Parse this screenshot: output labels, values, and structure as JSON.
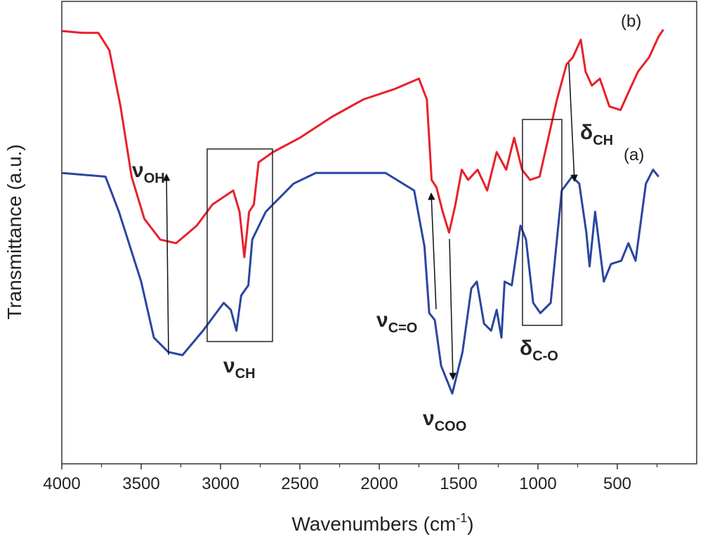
{
  "chart_data": {
    "type": "line",
    "ylabel": "Transmittance (a.u.)",
    "xlabel": [
      "Wavenumbers (cm",
      "-1",
      ")"
    ],
    "xlim": [
      4000,
      0
    ],
    "ylim": [
      0,
      100
    ],
    "xticks": [
      4000,
      3500,
      3000,
      2500,
      2000,
      1500,
      1000,
      500
    ],
    "xticks_minor": [
      3750,
      3250,
      2750,
      2250,
      1750,
      1250,
      750,
      250
    ],
    "annotations": [
      {
        "text": "(a)"
      },
      {
        "text": "(b)"
      },
      {
        "text": "ν",
        "sub": "OH"
      },
      {
        "text": "ν",
        "sub": "CH"
      },
      {
        "text": "ν",
        "sub": "C=O"
      },
      {
        "text": "ν",
        "sub": "COO"
      },
      {
        "text": "δ",
        "sub": "C-O"
      },
      {
        "text": "δ",
        "sub": "CH"
      }
    ],
    "series": [
      {
        "name": "(a)",
        "color": "#2b45a0",
        "x": [
          4000,
          3725,
          3640,
          3500,
          3420,
          3330,
          3240,
          3110,
          2980,
          2935,
          2900,
          2870,
          2825,
          2800,
          2715,
          2540,
          2400,
          1960,
          1780,
          1715,
          1685,
          1650,
          1610,
          1540,
          1475,
          1420,
          1385,
          1340,
          1295,
          1260,
          1230,
          1210,
          1165,
          1110,
          1075,
          1030,
          985,
          920,
          850,
          785,
          740,
          695,
          675,
          640,
          585,
          540,
          475,
          430,
          385,
          320,
          275,
          240
        ],
        "values": [
          62.9,
          62.1,
          54.5,
          39.4,
          27.3,
          24.2,
          23.5,
          28.8,
          34.8,
          33.3,
          28.8,
          36.4,
          38.6,
          48.5,
          54.5,
          60.6,
          62.9,
          62.9,
          59.1,
          47,
          32.6,
          31.1,
          21.2,
          15.2,
          24.2,
          37.9,
          39.4,
          30.3,
          28.8,
          33.3,
          27.3,
          39.4,
          38.6,
          51.5,
          48.5,
          34.8,
          32.6,
          34.8,
          59.1,
          62.1,
          60.6,
          50,
          42.7,
          54.5,
          39.4,
          43.2,
          43.9,
          47.7,
          43.9,
          60.6,
          63.6,
          62.1
        ]
      },
      {
        "name": "(b)",
        "color": "#e8202a",
        "x": [
          4000,
          3870,
          3770,
          3700,
          3630,
          3560,
          3480,
          3380,
          3280,
          3150,
          3050,
          2920,
          2880,
          2850,
          2820,
          2790,
          2760,
          2670,
          2500,
          2300,
          2100,
          1900,
          1750,
          1700,
          1670,
          1640,
          1600,
          1560,
          1520,
          1480,
          1440,
          1380,
          1320,
          1260,
          1200,
          1150,
          1100,
          1050,
          990,
          940,
          880,
          820,
          780,
          730,
          700,
          660,
          610,
          550,
          480,
          430,
          370,
          300,
          240,
          210
        ],
        "values": [
          93.6,
          93.2,
          93.2,
          89.4,
          77.3,
          62.1,
          53,
          48.5,
          47.7,
          51.5,
          56.1,
          59.1,
          54.5,
          44.7,
          54.5,
          56.1,
          65.2,
          67.4,
          70.5,
          75,
          78.8,
          81.1,
          83.3,
          78.8,
          61.4,
          59.8,
          54.5,
          50,
          56.1,
          63.6,
          61.4,
          63.6,
          59.1,
          67.4,
          63.6,
          70.5,
          63.6,
          61.4,
          62.1,
          69.7,
          78.8,
          86.4,
          87.9,
          91.7,
          84.8,
          81.8,
          83.3,
          77.3,
          76.5,
          80.3,
          84.8,
          87.9,
          92.4,
          93.9
        ]
      }
    ]
  }
}
